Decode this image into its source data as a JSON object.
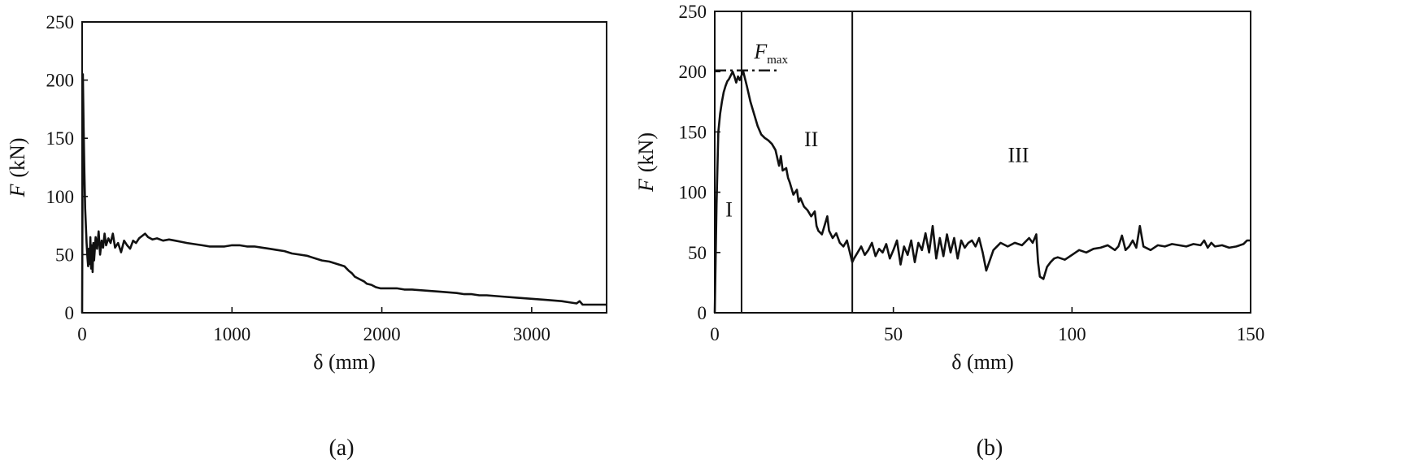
{
  "chart_data": [
    {
      "type": "line",
      "panel_label": "(a)",
      "xlabel": "δ (mm)",
      "ylabel_var": "F",
      "ylabel_unit": "(kN)",
      "xlim": [
        0,
        3500
      ],
      "ylim": [
        0,
        250
      ],
      "xticks": [
        0,
        1000,
        2000,
        3000
      ],
      "yticks": [
        0,
        50,
        100,
        150,
        200,
        250
      ],
      "grid": false,
      "series": [
        {
          "x": [
            0,
            5,
            10,
            15,
            20,
            25,
            30,
            35,
            40,
            45,
            50,
            55,
            60,
            65,
            70,
            75,
            80,
            90,
            100,
            110,
            120,
            130,
            140,
            150,
            160,
            175,
            190,
            205,
            220,
            240,
            260,
            280,
            300,
            320,
            340,
            360,
            380,
            400,
            420,
            440,
            470,
            500,
            540,
            580,
            620,
            660,
            700,
            750,
            800,
            850,
            900,
            950,
            1000,
            1050,
            1100,
            1150,
            1200,
            1250,
            1300,
            1350,
            1400,
            1450,
            1500,
            1550,
            1600,
            1650,
            1700,
            1750,
            1780,
            1800,
            1820,
            1850,
            1880,
            1900,
            1930,
            1960,
            1990,
            2020,
            2050,
            2100,
            2150,
            2200,
            2300,
            2400,
            2500,
            2550,
            2600,
            2650,
            2700,
            2800,
            2900,
            3000,
            3100,
            3200,
            3250,
            3300,
            3320,
            3340,
            3360,
            3400,
            3500
          ],
          "y": [
            0,
            205,
            160,
            120,
            90,
            75,
            60,
            48,
            40,
            55,
            42,
            65,
            38,
            58,
            35,
            60,
            45,
            65,
            55,
            70,
            50,
            62,
            56,
            68,
            58,
            64,
            60,
            68,
            56,
            60,
            52,
            62,
            58,
            55,
            62,
            60,
            64,
            66,
            68,
            65,
            63,
            64,
            62,
            63,
            62,
            61,
            60,
            59,
            58,
            57,
            57,
            57,
            58,
            58,
            57,
            57,
            56,
            55,
            54,
            53,
            51,
            50,
            49,
            47,
            45,
            44,
            42,
            40,
            36,
            34,
            31,
            29,
            27,
            25,
            24,
            22,
            21,
            21,
            21,
            21,
            20,
            20,
            19,
            18,
            17,
            16,
            16,
            15,
            15,
            14,
            13,
            12,
            11,
            10,
            9,
            8,
            10,
            7,
            7,
            7,
            7
          ]
        }
      ]
    },
    {
      "type": "line",
      "panel_label": "(b)",
      "xlabel": "δ (mm)",
      "ylabel_var": "F",
      "ylabel_unit": "(kN)",
      "xlim": [
        0,
        150
      ],
      "ylim": [
        0,
        250
      ],
      "xticks": [
        0,
        50,
        100,
        150
      ],
      "yticks": [
        0,
        50,
        100,
        150,
        200,
        250
      ],
      "grid": false,
      "regions": [
        "I",
        "II",
        "III"
      ],
      "region_label_positions": [
        [
          4,
          80
        ],
        [
          27,
          138
        ],
        [
          85,
          125
        ]
      ],
      "boundaries": [
        7.5,
        38.5
      ],
      "fmax": {
        "label_var": "F",
        "label_sub": "max",
        "value": 201,
        "x_extent": [
          0,
          18
        ],
        "label_at": [
          11,
          211
        ]
      },
      "series": [
        {
          "x": [
            0,
            0.5,
            1,
            1.5,
            2,
            2.5,
            3,
            3.5,
            4,
            4.5,
            5,
            5.5,
            6,
            6.5,
            7,
            7.5,
            8,
            9,
            10,
            11,
            12,
            13,
            14,
            15,
            16,
            17,
            18,
            18.5,
            19,
            20,
            20.5,
            21,
            22,
            23,
            23.5,
            24,
            25,
            26,
            27,
            28,
            28.5,
            29,
            30,
            31,
            31.5,
            32,
            33,
            34,
            35,
            36,
            37,
            38,
            38.5,
            39,
            40,
            41,
            42,
            43,
            44,
            45,
            46,
            47,
            48,
            49,
            50,
            51,
            52,
            53,
            54,
            55,
            56,
            57,
            58,
            59,
            60,
            61,
            62,
            63,
            64,
            65,
            66,
            67,
            68,
            69,
            70,
            71,
            72,
            73,
            74,
            75,
            76,
            78,
            80,
            82,
            84,
            86,
            88,
            89,
            90,
            90.5,
            91,
            92,
            93,
            94,
            95,
            96,
            98,
            100,
            102,
            104,
            106,
            108,
            110,
            112,
            113,
            114,
            115,
            116,
            117,
            118,
            119,
            120,
            122,
            124,
            126,
            128,
            130,
            132,
            134,
            136,
            137,
            138,
            139,
            140,
            142,
            144,
            146,
            148,
            149,
            150
          ],
          "y": [
            0,
            90,
            150,
            165,
            175,
            183,
            188,
            192,
            194,
            197,
            200,
            196,
            191,
            196,
            193,
            197,
            200,
            188,
            175,
            165,
            155,
            148,
            145,
            143,
            140,
            135,
            122,
            130,
            118,
            120,
            112,
            108,
            98,
            102,
            92,
            95,
            88,
            85,
            80,
            84,
            72,
            68,
            65,
            75,
            80,
            68,
            62,
            66,
            58,
            55,
            60,
            48,
            42,
            45,
            50,
            55,
            48,
            52,
            58,
            47,
            53,
            50,
            57,
            45,
            52,
            60,
            40,
            55,
            48,
            60,
            42,
            58,
            52,
            66,
            50,
            72,
            45,
            62,
            47,
            65,
            50,
            62,
            45,
            60,
            54,
            58,
            60,
            55,
            62,
            50,
            35,
            52,
            58,
            55,
            58,
            56,
            62,
            58,
            65,
            42,
            30,
            28,
            38,
            42,
            45,
            46,
            44,
            48,
            52,
            50,
            53,
            54,
            56,
            52,
            55,
            64,
            52,
            55,
            60,
            54,
            72,
            55,
            52,
            56,
            55,
            57,
            56,
            55,
            57,
            56,
            60,
            54,
            58,
            55,
            56,
            54,
            55,
            57,
            60,
            60
          ]
        }
      ]
    }
  ]
}
